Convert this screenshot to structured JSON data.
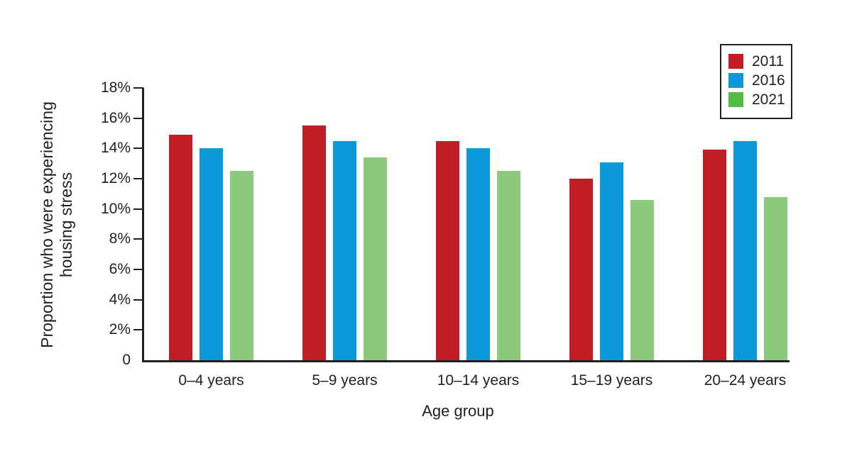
{
  "figure": {
    "background": "#ffffff",
    "text_color": "#231f20",
    "axis_color": "#231f20"
  },
  "chart_data": {
    "type": "bar",
    "title": "",
    "xlabel": "Age group",
    "ylabel": "Proportion who were experiencing housing stress",
    "ylabel_lines": [
      "Proportion who were experiencing",
      "housing stress"
    ],
    "categories": [
      "0–4 years",
      "5–9 years",
      "10–14 years",
      "15–19 years",
      "20–24 years"
    ],
    "series": [
      {
        "name": "2011",
        "color": "#be1e24",
        "legend_color": "#be1e24",
        "values": [
          14.9,
          15.5,
          14.5,
          12.0,
          13.9
        ]
      },
      {
        "name": "2016",
        "color": "#0a99d8",
        "legend_color": "#0a99d8",
        "values": [
          14.0,
          14.5,
          14.0,
          13.1,
          14.5
        ]
      },
      {
        "name": "2021",
        "color": "#8cc97d",
        "legend_color": "#55bb47",
        "values": [
          12.5,
          13.4,
          12.5,
          10.6,
          10.8
        ]
      }
    ],
    "ylim": [
      0,
      18
    ],
    "y_ticks": [
      {
        "value": 0,
        "label": "0"
      },
      {
        "value": 2,
        "label": "2%"
      },
      {
        "value": 4,
        "label": "4%"
      },
      {
        "value": 6,
        "label": "6%"
      },
      {
        "value": 8,
        "label": "8%"
      },
      {
        "value": 10,
        "label": "10%"
      },
      {
        "value": 12,
        "label": "12%"
      },
      {
        "value": 14,
        "label": "14%"
      },
      {
        "value": 16,
        "label": "16%"
      },
      {
        "value": 18,
        "label": "18%"
      }
    ],
    "grid": false,
    "legend_position": "top-right"
  }
}
